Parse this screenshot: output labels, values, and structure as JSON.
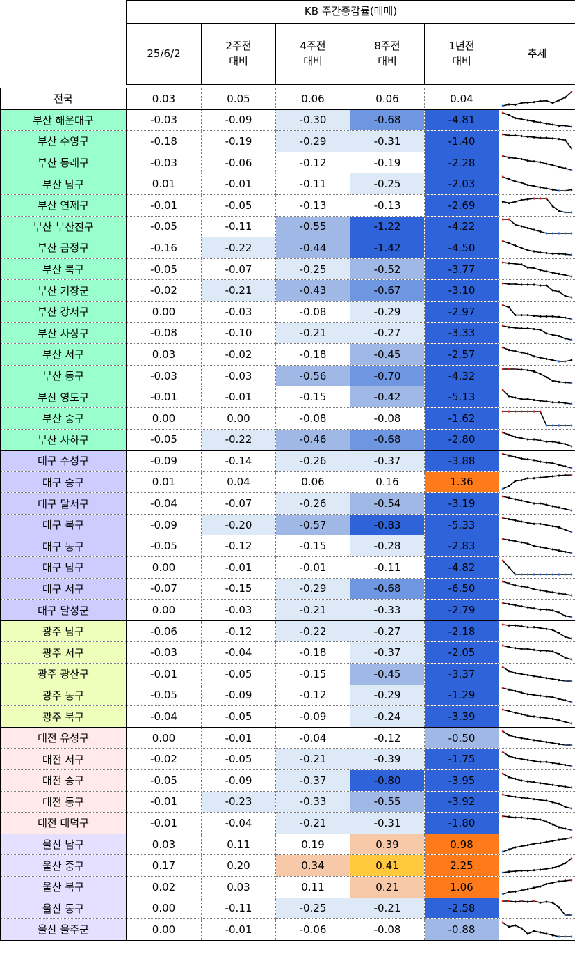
{
  "header": {
    "group_title": "KB 주간증감률(매매)",
    "columns": [
      "25/6/2",
      "2주전\n대비",
      "4주전\n대비",
      "8주전\n대비",
      "1년전\n대비",
      "추세"
    ]
  },
  "colors": {
    "busan": "#99ffcc",
    "daegu": "#ccccff",
    "gwangju": "#eeffbb",
    "daejeon": "#ffe9e9",
    "ulsan": "#e5e0ff",
    "neg_light": "#dde9f7",
    "neg_mid": "#9fb8e6",
    "neg_midstrong": "#6f96e0",
    "neg_strong": "#2e63da",
    "pos_light": "#f8c9a8",
    "pos_mid": "#ffc83d",
    "pos_strong": "#ff7a1a"
  },
  "rows": [
    {
      "name": "전국",
      "group": "national",
      "values": [
        "0.03",
        "0.05",
        "0.06",
        "0.06",
        "0.04"
      ],
      "trend": [
        0.0,
        0.015,
        0.012,
        0.03,
        0.035,
        0.04,
        0.05,
        0.055,
        0.03,
        0.06,
        0.09,
        0.15
      ]
    },
    {
      "name": "부산 해운대구",
      "group": "busan",
      "values": [
        "-0.03",
        "-0.09",
        "-0.30",
        "-0.68",
        "-4.81"
      ],
      "trend": [
        -0.02,
        -0.04,
        -0.07,
        -0.08,
        -0.09,
        -0.1,
        -0.11,
        -0.12,
        -0.13,
        -0.14,
        -0.14,
        -0.15
      ]
    },
    {
      "name": "부산 수영구",
      "group": "busan",
      "values": [
        "-0.18",
        "-0.19",
        "-0.29",
        "-0.31",
        "-1.40"
      ],
      "trend": [
        -0.02,
        -0.03,
        -0.03,
        -0.035,
        -0.04,
        -0.045,
        -0.05,
        -0.05,
        -0.055,
        -0.06,
        -0.07,
        -0.14
      ]
    },
    {
      "name": "부산 동래구",
      "group": "busan",
      "values": [
        "-0.03",
        "-0.06",
        "-0.12",
        "-0.19",
        "-2.28"
      ],
      "trend": [
        -0.02,
        -0.03,
        -0.035,
        -0.04,
        -0.05,
        -0.055,
        -0.06,
        -0.07,
        -0.08,
        -0.09,
        -0.1,
        -0.11
      ]
    },
    {
      "name": "부산 남구",
      "group": "busan",
      "values": [
        "0.01",
        "-0.01",
        "-0.11",
        "-0.25",
        "-2.03"
      ],
      "trend": [
        -0.02,
        -0.04,
        -0.06,
        -0.07,
        -0.09,
        -0.1,
        -0.11,
        -0.12,
        -0.13,
        -0.14,
        -0.14,
        -0.13
      ]
    },
    {
      "name": "부산 연제구",
      "group": "busan",
      "values": [
        "-0.01",
        "-0.05",
        "-0.13",
        "-0.13",
        "-2.69"
      ],
      "trend": [
        -0.06,
        -0.07,
        -0.06,
        -0.05,
        -0.045,
        -0.04,
        -0.04,
        -0.04,
        -0.09,
        -0.12,
        -0.13,
        -0.13
      ]
    },
    {
      "name": "부산 부산진구",
      "group": "busan",
      "values": [
        "-0.05",
        "-0.11",
        "-0.55",
        "-1.22",
        "-4.22"
      ],
      "trend": [
        -0.02,
        -0.02,
        -0.05,
        -0.06,
        -0.07,
        -0.08,
        -0.09,
        -0.1,
        -0.1,
        -0.1,
        -0.1,
        -0.1
      ]
    },
    {
      "name": "부산 금정구",
      "group": "busan",
      "values": [
        "-0.16",
        "-0.22",
        "-0.44",
        "-1.42",
        "-4.50"
      ],
      "trend": [
        -0.02,
        -0.04,
        -0.06,
        -0.08,
        -0.1,
        -0.11,
        -0.12,
        -0.125,
        -0.13,
        -0.13,
        -0.135,
        -0.14
      ]
    },
    {
      "name": "부산 북구",
      "group": "busan",
      "values": [
        "-0.05",
        "-0.07",
        "-0.25",
        "-0.52",
        "-3.77"
      ],
      "trend": [
        -0.02,
        -0.025,
        -0.03,
        -0.035,
        -0.06,
        -0.065,
        -0.08,
        -0.09,
        -0.1,
        -0.11,
        -0.12,
        -0.13
      ]
    },
    {
      "name": "부산 기장군",
      "group": "busan",
      "values": [
        "-0.02",
        "-0.21",
        "-0.43",
        "-0.67",
        "-3.10"
      ],
      "trend": [
        -0.02,
        -0.025,
        -0.025,
        -0.03,
        -0.03,
        -0.03,
        -0.035,
        -0.035,
        -0.07,
        -0.08,
        -0.11,
        -0.12
      ]
    },
    {
      "name": "부산 강서구",
      "group": "busan",
      "values": [
        "0.00",
        "-0.03",
        "-0.08",
        "-0.29",
        "-2.97"
      ],
      "trend": [
        -0.02,
        -0.04,
        -0.1,
        -0.1,
        -0.1,
        -0.105,
        -0.11,
        -0.11,
        -0.11,
        -0.115,
        -0.12,
        -0.13
      ]
    },
    {
      "name": "부산 사상구",
      "group": "busan",
      "values": [
        "-0.08",
        "-0.10",
        "-0.21",
        "-0.27",
        "-3.33"
      ],
      "trend": [
        -0.02,
        -0.03,
        -0.035,
        -0.04,
        -0.04,
        -0.045,
        -0.05,
        -0.08,
        -0.09,
        -0.1,
        -0.12,
        -0.13
      ]
    },
    {
      "name": "부산 서구",
      "group": "busan",
      "values": [
        "0.03",
        "-0.02",
        "-0.18",
        "-0.45",
        "-2.57"
      ],
      "trend": [
        -0.02,
        -0.04,
        -0.05,
        -0.06,
        -0.07,
        -0.09,
        -0.1,
        -0.11,
        -0.12,
        -0.13,
        -0.13,
        -0.12
      ]
    },
    {
      "name": "부산 동구",
      "group": "busan",
      "values": [
        "-0.03",
        "-0.03",
        "-0.56",
        "-0.70",
        "-4.32"
      ],
      "trend": [
        -0.02,
        -0.02,
        -0.02,
        -0.025,
        -0.03,
        -0.04,
        -0.06,
        -0.09,
        -0.12,
        -0.13,
        -0.135,
        -0.14
      ]
    },
    {
      "name": "부산 영도구",
      "group": "busan",
      "values": [
        "-0.01",
        "-0.01",
        "-0.15",
        "-0.42",
        "-5.13"
      ],
      "trend": [
        -0.02,
        -0.06,
        -0.07,
        -0.08,
        -0.08,
        -0.085,
        -0.09,
        -0.095,
        -0.1,
        -0.1,
        -0.105,
        -0.11
      ]
    },
    {
      "name": "부산 중구",
      "group": "busan",
      "values": [
        "0.00",
        "0.00",
        "-0.08",
        "-0.08",
        "-1.62"
      ],
      "trend": [
        -0.02,
        -0.02,
        -0.02,
        -0.02,
        -0.02,
        -0.02,
        -0.02,
        -0.08,
        -0.08,
        -0.08,
        -0.08,
        -0.08
      ]
    },
    {
      "name": "부산 사하구",
      "group": "busan",
      "values": [
        "-0.05",
        "-0.22",
        "-0.46",
        "-0.68",
        "-2.80"
      ],
      "trend": [
        -0.02,
        -0.03,
        -0.04,
        -0.045,
        -0.05,
        -0.05,
        -0.055,
        -0.06,
        -0.06,
        -0.065,
        -0.07,
        -0.08
      ]
    },
    {
      "name": "대구 수성구",
      "group": "daegu",
      "values": [
        "-0.09",
        "-0.14",
        "-0.26",
        "-0.37",
        "-3.88"
      ],
      "trend": [
        -0.02,
        -0.03,
        -0.04,
        -0.05,
        -0.055,
        -0.06,
        -0.07,
        -0.075,
        -0.08,
        -0.09,
        -0.1,
        -0.11
      ]
    },
    {
      "name": "대구 중구",
      "group": "daegu",
      "values": [
        "0.01",
        "0.04",
        "0.06",
        "0.16",
        "1.36"
      ],
      "trend": [
        -0.1,
        -0.08,
        -0.04,
        -0.035,
        -0.02,
        -0.02,
        -0.015,
        -0.01,
        -0.005,
        0.0,
        0.003,
        0.005
      ]
    },
    {
      "name": "대구 달서구",
      "group": "daegu",
      "values": [
        "-0.04",
        "-0.07",
        "-0.26",
        "-0.54",
        "-3.19"
      ],
      "trend": [
        -0.02,
        -0.025,
        -0.03,
        -0.035,
        -0.04,
        -0.045,
        -0.045,
        -0.05,
        -0.055,
        -0.06,
        -0.065,
        -0.07
      ]
    },
    {
      "name": "대구 북구",
      "group": "daegu",
      "values": [
        "-0.09",
        "-0.20",
        "-0.57",
        "-0.83",
        "-5.33"
      ],
      "trend": [
        -0.02,
        -0.025,
        -0.03,
        -0.035,
        -0.04,
        -0.045,
        -0.045,
        -0.05,
        -0.055,
        -0.06,
        -0.07,
        -0.08
      ]
    },
    {
      "name": "대구 동구",
      "group": "daegu",
      "values": [
        "-0.05",
        "-0.12",
        "-0.15",
        "-0.28",
        "-2.83"
      ],
      "trend": [
        -0.02,
        -0.025,
        -0.03,
        -0.035,
        -0.04,
        -0.05,
        -0.055,
        -0.06,
        -0.065,
        -0.07,
        -0.075,
        -0.08
      ]
    },
    {
      "name": "대구 남구",
      "group": "daegu",
      "values": [
        "0.00",
        "-0.01",
        "-0.01",
        "-0.11",
        "-4.82"
      ],
      "trend": [
        -0.02,
        -0.06,
        -0.1,
        -0.1,
        -0.1,
        -0.1,
        -0.1,
        -0.1,
        -0.1,
        -0.1,
        -0.1,
        -0.1
      ]
    },
    {
      "name": "대구 서구",
      "group": "daegu",
      "values": [
        "-0.07",
        "-0.15",
        "-0.29",
        "-0.68",
        "-6.50"
      ],
      "trend": [
        -0.02,
        -0.03,
        -0.04,
        -0.045,
        -0.05,
        -0.06,
        -0.065,
        -0.07,
        -0.075,
        -0.08,
        -0.085,
        -0.09
      ]
    },
    {
      "name": "대구 달성군",
      "group": "daegu",
      "values": [
        "0.00",
        "-0.03",
        "-0.21",
        "-0.33",
        "-2.79"
      ],
      "trend": [
        -0.02,
        -0.025,
        -0.03,
        -0.035,
        -0.04,
        -0.045,
        -0.05,
        -0.05,
        -0.055,
        -0.065,
        -0.08,
        -0.085
      ]
    },
    {
      "name": "광주 남구",
      "group": "gwangju",
      "values": [
        "-0.06",
        "-0.12",
        "-0.22",
        "-0.27",
        "-2.18"
      ],
      "trend": [
        -0.02,
        -0.025,
        -0.025,
        -0.03,
        -0.035,
        -0.035,
        -0.04,
        -0.045,
        -0.05,
        -0.07,
        -0.09,
        -0.1
      ]
    },
    {
      "name": "광주 서구",
      "group": "gwangju",
      "values": [
        "-0.03",
        "-0.04",
        "-0.18",
        "-0.37",
        "-2.05"
      ],
      "trend": [
        -0.02,
        -0.03,
        -0.035,
        -0.04,
        -0.04,
        -0.045,
        -0.05,
        -0.05,
        -0.055,
        -0.07,
        -0.09,
        -0.1
      ]
    },
    {
      "name": "광주 광산구",
      "group": "gwangju",
      "values": [
        "-0.01",
        "-0.05",
        "-0.15",
        "-0.45",
        "-3.37"
      ],
      "trend": [
        -0.02,
        -0.04,
        -0.05,
        -0.055,
        -0.06,
        -0.065,
        -0.07,
        -0.075,
        -0.08,
        -0.085,
        -0.09,
        -0.09
      ]
    },
    {
      "name": "광주 동구",
      "group": "gwangju",
      "values": [
        "-0.05",
        "-0.09",
        "-0.12",
        "-0.29",
        "-1.29"
      ],
      "trend": [
        -0.02,
        -0.03,
        -0.04,
        -0.05,
        -0.06,
        -0.065,
        -0.07,
        -0.075,
        -0.08,
        -0.09,
        -0.1,
        -0.11
      ]
    },
    {
      "name": "광주 북구",
      "group": "gwangju",
      "values": [
        "-0.04",
        "-0.05",
        "-0.09",
        "-0.24",
        "-3.39"
      ],
      "trend": [
        -0.02,
        -0.03,
        -0.04,
        -0.05,
        -0.06,
        -0.065,
        -0.07,
        -0.075,
        -0.08,
        -0.09,
        -0.1,
        -0.11
      ]
    },
    {
      "name": "대전 유성구",
      "group": "daejeon",
      "values": [
        "0.00",
        "-0.01",
        "-0.04",
        "-0.12",
        "-0.50"
      ],
      "trend": [
        -0.02,
        -0.04,
        -0.05,
        -0.055,
        -0.06,
        -0.065,
        -0.07,
        -0.075,
        -0.08,
        -0.085,
        -0.09,
        -0.09
      ]
    },
    {
      "name": "대전 서구",
      "group": "daejeon",
      "values": [
        "-0.02",
        "-0.05",
        "-0.21",
        "-0.39",
        "-1.75"
      ],
      "trend": [
        -0.02,
        -0.04,
        -0.05,
        -0.055,
        -0.06,
        -0.065,
        -0.07,
        -0.07,
        -0.075,
        -0.08,
        -0.085,
        -0.09
      ]
    },
    {
      "name": "대전 중구",
      "group": "daejeon",
      "values": [
        "-0.05",
        "-0.09",
        "-0.37",
        "-0.80",
        "-3.95"
      ],
      "trend": [
        -0.02,
        -0.04,
        -0.05,
        -0.06,
        -0.065,
        -0.07,
        -0.075,
        -0.08,
        -0.085,
        -0.09,
        -0.095,
        -0.1
      ]
    },
    {
      "name": "대전 동구",
      "group": "daejeon",
      "values": [
        "-0.01",
        "-0.23",
        "-0.33",
        "-0.55",
        "-3.92"
      ],
      "trend": [
        -0.02,
        -0.03,
        -0.035,
        -0.04,
        -0.045,
        -0.05,
        -0.055,
        -0.06,
        -0.07,
        -0.08,
        -0.1,
        -0.11
      ]
    },
    {
      "name": "대전 대덕구",
      "group": "daejeon",
      "values": [
        "-0.01",
        "-0.04",
        "-0.21",
        "-0.31",
        "-1.80"
      ],
      "trend": [
        -0.02,
        -0.025,
        -0.03,
        -0.03,
        -0.035,
        -0.04,
        -0.045,
        -0.06,
        -0.08,
        -0.1,
        -0.11,
        -0.12
      ]
    },
    {
      "name": "울산 남구",
      "group": "ulsan",
      "values": [
        "0.03",
        "0.11",
        "0.19",
        "0.39",
        "0.98"
      ],
      "trend": [
        0.0,
        0.02,
        0.04,
        0.05,
        0.06,
        0.075,
        0.08,
        0.09,
        0.1,
        0.11,
        0.12,
        0.13
      ]
    },
    {
      "name": "울산 중구",
      "group": "ulsan",
      "values": [
        "0.17",
        "0.20",
        "0.34",
        "0.41",
        "2.25"
      ],
      "trend": [
        0.0,
        0.01,
        0.015,
        0.02,
        0.02,
        0.025,
        0.03,
        0.04,
        0.05,
        0.07,
        0.1,
        0.15
      ]
    },
    {
      "name": "울산 북구",
      "group": "ulsan",
      "values": [
        "0.02",
        "0.03",
        "0.11",
        "0.21",
        "1.06"
      ],
      "trend": [
        0.0,
        0.015,
        0.02,
        0.03,
        0.04,
        0.05,
        0.06,
        0.08,
        0.09,
        0.1,
        0.105,
        0.11
      ]
    },
    {
      "name": "울산 동구",
      "group": "ulsan",
      "values": [
        "0.00",
        "-0.11",
        "-0.25",
        "-0.21",
        "-2.58"
      ],
      "trend": [
        -0.02,
        -0.02,
        -0.025,
        -0.02,
        -0.025,
        -0.02,
        -0.03,
        -0.025,
        -0.03,
        -0.06,
        -0.11,
        -0.11
      ]
    },
    {
      "name": "울산 울주군",
      "group": "ulsan",
      "values": [
        "0.00",
        "-0.01",
        "-0.06",
        "-0.08",
        "-0.88"
      ],
      "trend": [
        -0.02,
        -0.05,
        -0.04,
        -0.06,
        -0.1,
        -0.08,
        -0.09,
        -0.1,
        -0.11,
        -0.12,
        -0.12,
        -0.12
      ]
    }
  ]
}
